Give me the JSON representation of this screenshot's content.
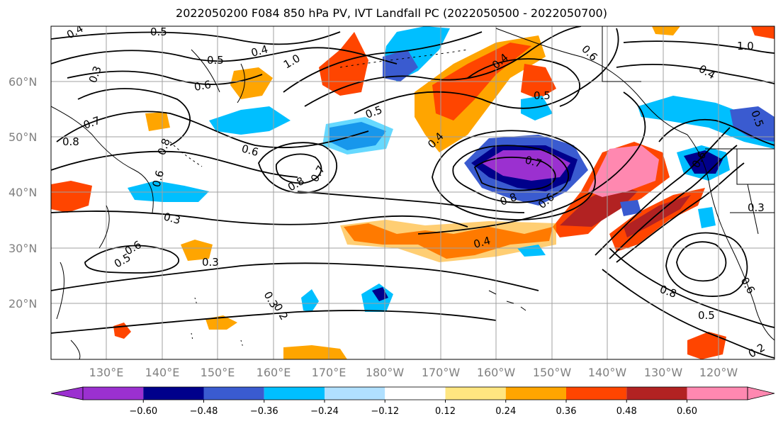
{
  "title": "2022050200 F084 850 hPa PV, IVT Landfall PC (2022050500 - 2022050700)",
  "map": {
    "lat_labels": [
      "60°N",
      "50°N",
      "40°N",
      "30°N",
      "20°N"
    ],
    "lon_labels": [
      "130°E",
      "140°E",
      "150°E",
      "160°E",
      "170°E",
      "180°W",
      "170°W",
      "160°W",
      "150°W",
      "140°W",
      "130°W",
      "120°W"
    ],
    "contour_labels": [
      "0.4",
      "0.5",
      "0.4",
      "0.5",
      "0.6",
      "1.0",
      "0.3",
      "0.7",
      "0.6",
      "0.5",
      "0.4",
      "0.6",
      "0.8",
      "0.4",
      "0.5",
      "0.8",
      "0.6",
      "0.7",
      "0.8",
      "0.7",
      "0.8",
      "0.6",
      "0.3",
      "0.6",
      "0.4",
      "0.3",
      "0.5",
      "0.3",
      "0.2",
      "0.8",
      "0.5",
      "0.6",
      "0.2",
      "0.3",
      "0.6",
      "0.5",
      "1.0",
      "0.4"
    ]
  },
  "colorbar": {
    "ticks": [
      "−0.60",
      "−0.48",
      "−0.36",
      "−0.24",
      "−0.12",
      "0.12",
      "0.24",
      "0.36",
      "0.48",
      "0.60"
    ],
    "colors": [
      "#9b30d0",
      "#00008b",
      "#3a5bd0",
      "#00bfff",
      "#b0e0ff",
      "#ffffff",
      "#ffe680",
      "#ffa500",
      "#ff4500",
      "#b22222",
      "#ff88b0",
      "#ff88b0"
    ]
  }
}
